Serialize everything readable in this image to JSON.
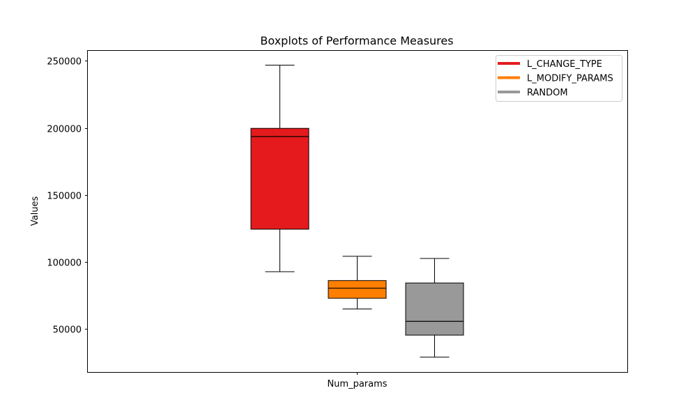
{
  "chart_data": {
    "type": "boxplot",
    "title": "Boxplots of Performance Measures",
    "xlabel": "",
    "ylabel": "Values",
    "categories": [
      "Num_params"
    ],
    "ylim": [
      18000,
      258000
    ],
    "yticks": [
      50000,
      100000,
      150000,
      200000,
      250000
    ],
    "ytick_labels": [
      "50000",
      "100000",
      "150000",
      "200000",
      "250000"
    ],
    "grid": false,
    "legend_position": "top-right",
    "series": [
      {
        "name": "L_CHANGE_TYPE",
        "color": "#e41a1c",
        "whisker_low": 92800,
        "q1": 124500,
        "median": 193600,
        "q3": 199700,
        "whisker_high": 246800
      },
      {
        "name": "L_MODIFY_PARAMS",
        "color": "#ff7f00",
        "whisker_low": 65000,
        "q1": 73000,
        "median": 80500,
        "q3": 86200,
        "whisker_high": 104300
      },
      {
        "name": "RANDOM",
        "color": "#999999",
        "whisker_low": 29100,
        "q1": 45500,
        "median": 55800,
        "q3": 84400,
        "whisker_high": 102700
      }
    ]
  }
}
